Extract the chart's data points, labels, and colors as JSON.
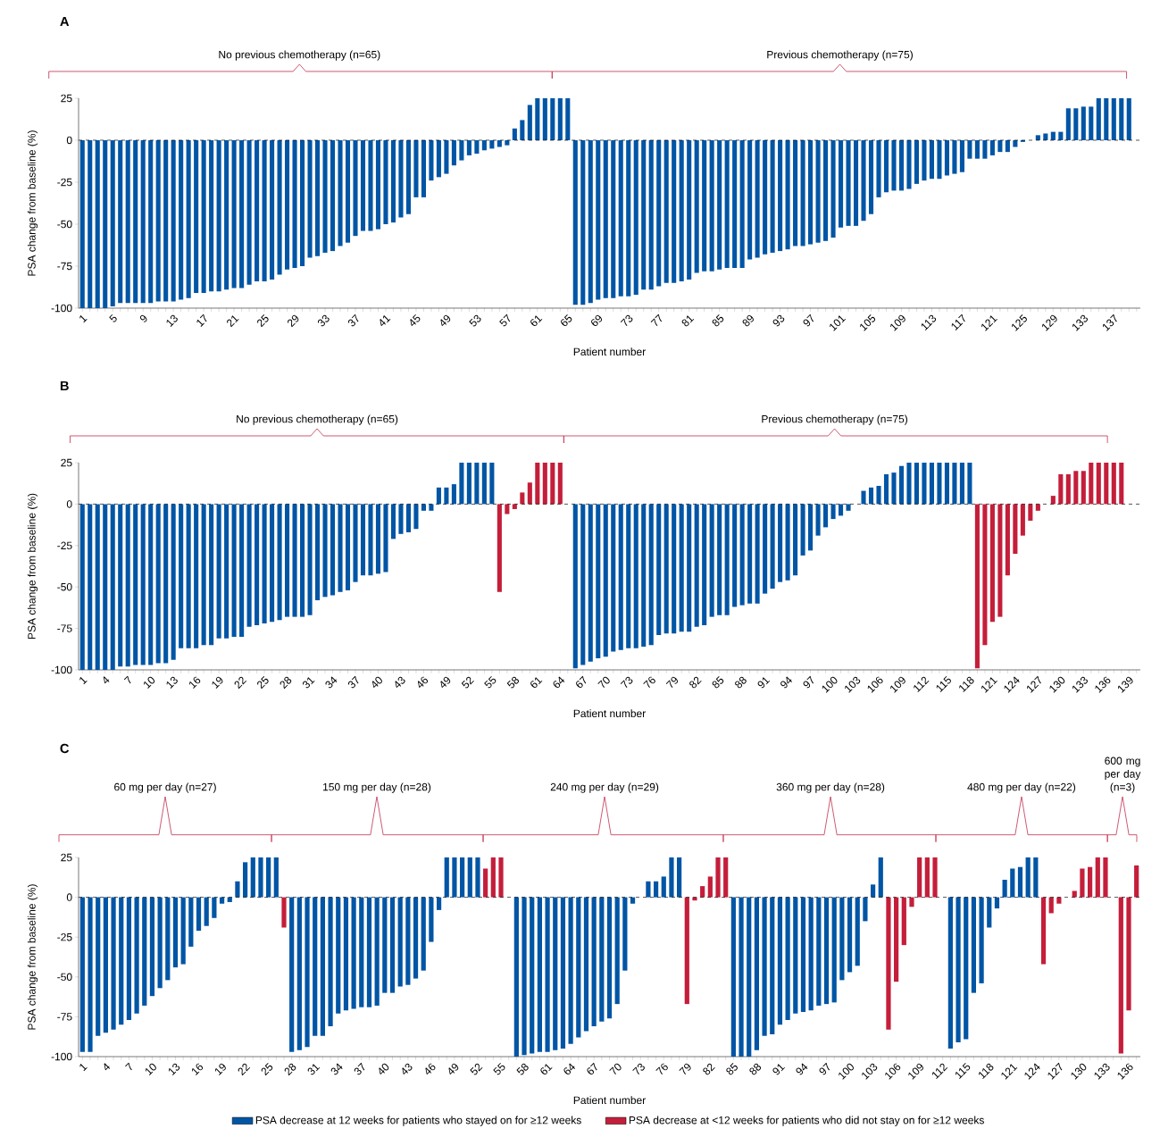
{
  "chart_data": [
    {
      "type": "bar",
      "title": "A",
      "xlabel": "Patient number",
      "ylabel": "PSA change from baseline (%)",
      "categories": [
        "1",
        null,
        null,
        null,
        "5",
        null,
        null,
        null,
        "9",
        null,
        null,
        null,
        "13",
        null,
        null,
        null,
        "17",
        null,
        null,
        null,
        "21",
        null,
        null,
        null,
        "25",
        null,
        null,
        null,
        "29",
        null,
        null,
        null,
        "33",
        null,
        null,
        null,
        "37",
        null,
        null,
        null,
        "41",
        null,
        null,
        null,
        "45",
        null,
        null,
        null,
        "49",
        null,
        null,
        null,
        "53",
        null,
        null,
        null,
        "57",
        null,
        null,
        null,
        "61",
        null,
        null,
        null,
        "65",
        null,
        null,
        null,
        "69",
        null,
        null,
        null,
        "73",
        null,
        null,
        null,
        "77",
        null,
        null,
        null,
        "81",
        null,
        null,
        null,
        "85",
        null,
        null,
        null,
        "89",
        null,
        null,
        null,
        "93",
        null,
        null,
        null,
        "97",
        null,
        null,
        null,
        "101",
        null,
        null,
        null,
        "105",
        null,
        null,
        null,
        "109",
        null,
        null,
        null,
        "113",
        null,
        null,
        null,
        "117",
        null,
        null,
        null,
        "121",
        null,
        null,
        null,
        "125",
        null,
        null,
        null,
        "129",
        null,
        null,
        null,
        "133",
        null,
        null,
        null,
        "137",
        null,
        null,
        null
      ],
      "series": [
        {
          "color": "#0055a5",
          "values": [
            -100,
            -100,
            -100,
            -100,
            -99,
            -97,
            -97,
            -97,
            -97,
            -97,
            -96,
            -96,
            -96,
            -95,
            -94,
            -91,
            -91,
            -90,
            -90,
            -89,
            -88,
            -88,
            -86,
            -84,
            -84,
            -83,
            -80,
            -77,
            -76,
            -75,
            -70,
            -69,
            -67,
            -66,
            -63,
            -61,
            -57,
            -54,
            -54,
            -53,
            -50,
            -49,
            -46,
            -44,
            -34,
            -34,
            -24,
            -22,
            -20,
            -15,
            -12,
            -9,
            -8,
            -6,
            -5,
            -4,
            -3,
            7,
            12,
            21,
            25,
            25,
            25,
            25,
            25,
            -98,
            -98,
            -97,
            -95,
            -94,
            -94,
            -93,
            -93,
            -92,
            -89,
            -89,
            -87,
            -85,
            -85,
            -84,
            -83,
            -79,
            -78,
            -78,
            -77,
            -76,
            -76,
            -76,
            -71,
            -70,
            -68,
            -67,
            -66,
            -65,
            -63,
            -63,
            -62,
            -61,
            -60,
            -58,
            -52,
            -51,
            -51,
            -48,
            -44,
            -34,
            -31,
            -30,
            -30,
            -29,
            -26,
            -24,
            -23,
            -23,
            -21,
            -20,
            -19,
            -11,
            -11,
            -11,
            -9,
            -7,
            -7,
            -4,
            -1,
            null,
            3,
            4,
            5,
            5,
            19,
            19,
            20,
            20,
            25,
            25,
            25,
            25,
            25,
            null
          ]
        }
      ],
      "ylim": [
        -100,
        25
      ],
      "yticks": [
        -100,
        -75,
        -50,
        -25,
        0,
        25
      ],
      "ref_lines": [
        {
          "axis": "y",
          "value": 0,
          "line_style": "dashed"
        }
      ],
      "annotations": [
        "No previous chemotherapy (n=65)",
        "Previous chemotherapy (n=75)"
      ]
    },
    {
      "type": "bar",
      "title": "B",
      "xlabel": "Patient number",
      "ylabel": "PSA change from baseline (%)",
      "categories": [
        "1",
        null,
        null,
        "4",
        null,
        null,
        "7",
        null,
        null,
        "10",
        null,
        null,
        "13",
        null,
        null,
        "16",
        null,
        null,
        "19",
        null,
        null,
        "22",
        null,
        null,
        "25",
        null,
        null,
        "28",
        null,
        null,
        "31",
        null,
        null,
        "34",
        null,
        null,
        "37",
        null,
        null,
        "40",
        null,
        null,
        "43",
        null,
        null,
        "46",
        null,
        null,
        "49",
        null,
        null,
        "52",
        null,
        null,
        "55",
        null,
        null,
        "58",
        null,
        null,
        "61",
        null,
        null,
        "64",
        null,
        null,
        "67",
        null,
        null,
        "70",
        null,
        null,
        "73",
        null,
        null,
        "76",
        null,
        null,
        "79",
        null,
        null,
        "82",
        null,
        null,
        "85",
        null,
        null,
        "88",
        null,
        null,
        "91",
        null,
        null,
        "94",
        null,
        null,
        "97",
        null,
        null,
        "100",
        null,
        null,
        "103",
        null,
        null,
        "106",
        null,
        null,
        "109",
        null,
        null,
        "112",
        null,
        null,
        "115",
        null,
        null,
        "118",
        null,
        null,
        "121",
        null,
        null,
        "124",
        null,
        null,
        "127",
        null,
        null,
        "130",
        null,
        null,
        "133",
        null,
        null,
        "136",
        null,
        null,
        "139",
        null
      ],
      "series": [
        {
          "color": "#0055a5",
          "values": [
            -100,
            -100,
            -100,
            -100,
            -100,
            -98,
            -98,
            -97,
            -97,
            -97,
            -96,
            -96,
            -94,
            -87,
            -87,
            -87,
            -85,
            -85,
            -81,
            -81,
            -80,
            -80,
            -74,
            -73,
            -72,
            -71,
            -70,
            -68,
            -68,
            -68,
            -67,
            -58,
            -56,
            -55,
            -53,
            -52,
            -47,
            -43,
            -43,
            -42,
            -41,
            -21,
            -18,
            -17,
            -15,
            -4,
            -4,
            10,
            10,
            12,
            25,
            25,
            25,
            25,
            25,
            null,
            null,
            null,
            null,
            null,
            null,
            null,
            null,
            null,
            null,
            -99,
            -97,
            -95,
            -93,
            -92,
            -89,
            -88,
            -87,
            -87,
            -86,
            -85,
            -79,
            -78,
            -78,
            -77,
            -77,
            -74,
            -73,
            -68,
            -67,
            -67,
            -62,
            -61,
            -60,
            -60,
            -54,
            -51,
            -47,
            -46,
            -43,
            -31,
            -28,
            -19,
            -14,
            -9,
            -7,
            -4,
            null,
            8,
            10,
            11,
            18,
            19,
            23,
            25,
            25,
            25,
            25,
            25,
            25,
            25,
            25,
            25,
            null,
            null,
            null,
            null,
            null,
            null,
            null,
            null,
            null,
            null,
            null,
            null,
            null,
            null,
            null,
            null,
            null,
            null,
            null,
            null,
            null,
            null
          ]
        },
        {
          "color": "#c41e3a",
          "values": [
            null,
            null,
            null,
            null,
            null,
            null,
            null,
            null,
            null,
            null,
            null,
            null,
            null,
            null,
            null,
            null,
            null,
            null,
            null,
            null,
            null,
            null,
            null,
            null,
            null,
            null,
            null,
            null,
            null,
            null,
            null,
            null,
            null,
            null,
            null,
            null,
            null,
            null,
            null,
            null,
            null,
            null,
            null,
            null,
            null,
            null,
            null,
            null,
            null,
            null,
            null,
            null,
            null,
            null,
            null,
            -53,
            -6,
            -3,
            7,
            13,
            25,
            25,
            25,
            25,
            null,
            null,
            null,
            null,
            null,
            null,
            null,
            null,
            null,
            null,
            null,
            null,
            null,
            null,
            null,
            null,
            null,
            null,
            null,
            null,
            null,
            null,
            null,
            null,
            null,
            null,
            null,
            null,
            null,
            null,
            null,
            null,
            null,
            null,
            null,
            null,
            null,
            null,
            null,
            null,
            null,
            null,
            null,
            null,
            null,
            null,
            null,
            null,
            null,
            null,
            null,
            null,
            null,
            null,
            -99,
            -85,
            -71,
            -68,
            -43,
            -30,
            -19,
            -10,
            -4,
            null,
            5,
            18,
            18,
            20,
            20,
            25,
            25,
            25,
            25,
            25,
            null,
            null
          ]
        }
      ],
      "ylim": [
        -100,
        25
      ],
      "yticks": [
        -100,
        -75,
        -50,
        -25,
        0,
        25
      ],
      "ref_lines": [
        {
          "axis": "y",
          "value": 0,
          "line_style": "dashed"
        }
      ],
      "annotations": [
        "No previous chemotherapy (n=65)",
        "Previous chemotherapy (n=75)"
      ]
    },
    {
      "type": "bar",
      "title": "C",
      "xlabel": "Patient number",
      "ylabel": "PSA change from baseline (%)",
      "categories": [
        "1",
        null,
        null,
        "4",
        null,
        null,
        "7",
        null,
        null,
        "10",
        null,
        null,
        "13",
        null,
        null,
        "16",
        null,
        null,
        "19",
        null,
        null,
        "22",
        null,
        null,
        "25",
        null,
        null,
        "28",
        null,
        null,
        "31",
        null,
        null,
        "34",
        null,
        null,
        "37",
        null,
        null,
        "40",
        null,
        null,
        "43",
        null,
        null,
        "46",
        null,
        null,
        "49",
        null,
        null,
        "52",
        null,
        null,
        "55",
        null,
        null,
        "58",
        null,
        null,
        "61",
        null,
        null,
        "64",
        null,
        null,
        "67",
        null,
        null,
        "70",
        null,
        null,
        "73",
        null,
        null,
        "76",
        null,
        null,
        "79",
        null,
        null,
        "82",
        null,
        null,
        "85",
        null,
        null,
        "88",
        null,
        null,
        "91",
        null,
        null,
        "94",
        null,
        null,
        "97",
        null,
        null,
        "100",
        null,
        null,
        "103",
        null,
        null,
        "106",
        null,
        null,
        "109",
        null,
        null,
        "112",
        null,
        null,
        "115",
        null,
        null,
        "118",
        null,
        null,
        "121",
        null,
        null,
        "124",
        null,
        null,
        "127",
        null,
        null,
        "130",
        null,
        null,
        "133",
        null,
        null,
        "136",
        null
      ],
      "series": [
        {
          "name": "PSA decrease at 12 weeks for patients who stayed on for ≥12 weeks",
          "color": "#0055a5",
          "values": [
            -97,
            -97,
            -87,
            -85,
            -83,
            -80,
            -77,
            -73,
            -68,
            -62,
            -57,
            -52,
            -44,
            -42,
            -31,
            -21,
            -18,
            -13,
            -4,
            -3,
            10,
            22,
            25,
            25,
            25,
            25,
            null,
            -97,
            -96,
            -94,
            -87,
            -87,
            -81,
            -73,
            -71,
            -70,
            -69,
            -69,
            -68,
            -60,
            -60,
            -56,
            -55,
            -51,
            -46,
            -28,
            -8,
            25,
            25,
            25,
            25,
            25,
            null,
            null,
            null,
            null,
            -100,
            -99,
            -98,
            -97,
            -97,
            -96,
            -95,
            -92,
            -88,
            -84,
            -81,
            -78,
            -76,
            -67,
            -46,
            -4,
            null,
            10,
            10,
            13,
            25,
            25,
            null,
            null,
            null,
            null,
            null,
            null,
            -100,
            -100,
            -100,
            -96,
            -87,
            -86,
            -80,
            -77,
            -73,
            -72,
            -71,
            -68,
            -67,
            -66,
            -52,
            -47,
            -43,
            -15,
            8,
            25,
            null,
            null,
            null,
            null,
            null,
            null,
            null,
            null,
            -95,
            -91,
            -89,
            -60,
            -54,
            -19,
            -7,
            11,
            18,
            19,
            25,
            25,
            null,
            null,
            null,
            null,
            null,
            null,
            null,
            null,
            null,
            null,
            null,
            null,
            null
          ]
        },
        {
          "name": "PSA decrease at <12 weeks for patients who did not stay on for ≥12 weeks",
          "color": "#c41e3a",
          "values": [
            null,
            null,
            null,
            null,
            null,
            null,
            null,
            null,
            null,
            null,
            null,
            null,
            null,
            null,
            null,
            null,
            null,
            null,
            null,
            null,
            null,
            null,
            null,
            null,
            null,
            null,
            -19,
            null,
            null,
            null,
            null,
            null,
            null,
            null,
            null,
            null,
            null,
            null,
            null,
            null,
            null,
            null,
            null,
            null,
            null,
            null,
            null,
            null,
            null,
            null,
            null,
            null,
            18,
            25,
            25,
            null,
            null,
            null,
            null,
            null,
            null,
            null,
            null,
            null,
            null,
            null,
            null,
            null,
            null,
            null,
            null,
            null,
            null,
            null,
            null,
            null,
            null,
            null,
            -67,
            -2,
            7,
            13,
            25,
            25,
            null,
            null,
            null,
            null,
            null,
            null,
            null,
            null,
            null,
            null,
            null,
            null,
            null,
            null,
            null,
            null,
            null,
            null,
            null,
            null,
            -83,
            -53,
            -30,
            -6,
            25,
            25,
            25,
            null,
            null,
            null,
            null,
            null,
            null,
            null,
            null,
            null,
            null,
            null,
            null,
            null,
            -42,
            -10,
            -4,
            null,
            4,
            18,
            19,
            25,
            25,
            null,
            -98,
            -71,
            20
          ]
        }
      ],
      "ylim": [
        -100,
        25
      ],
      "yticks": [
        -100,
        -75,
        -50,
        -25,
        0,
        25
      ],
      "ref_lines": [
        {
          "axis": "y",
          "value": 0,
          "line_style": "dashed"
        }
      ],
      "legend": "bottom",
      "annotations": [
        "60 mg per day (n=27)",
        "150 mg per day (n=28)",
        "240 mg per day (n=29)",
        "360 mg per day (n=28)",
        "480 mg per day (n=22)",
        "600 mg per day (n=3)"
      ]
    }
  ]
}
